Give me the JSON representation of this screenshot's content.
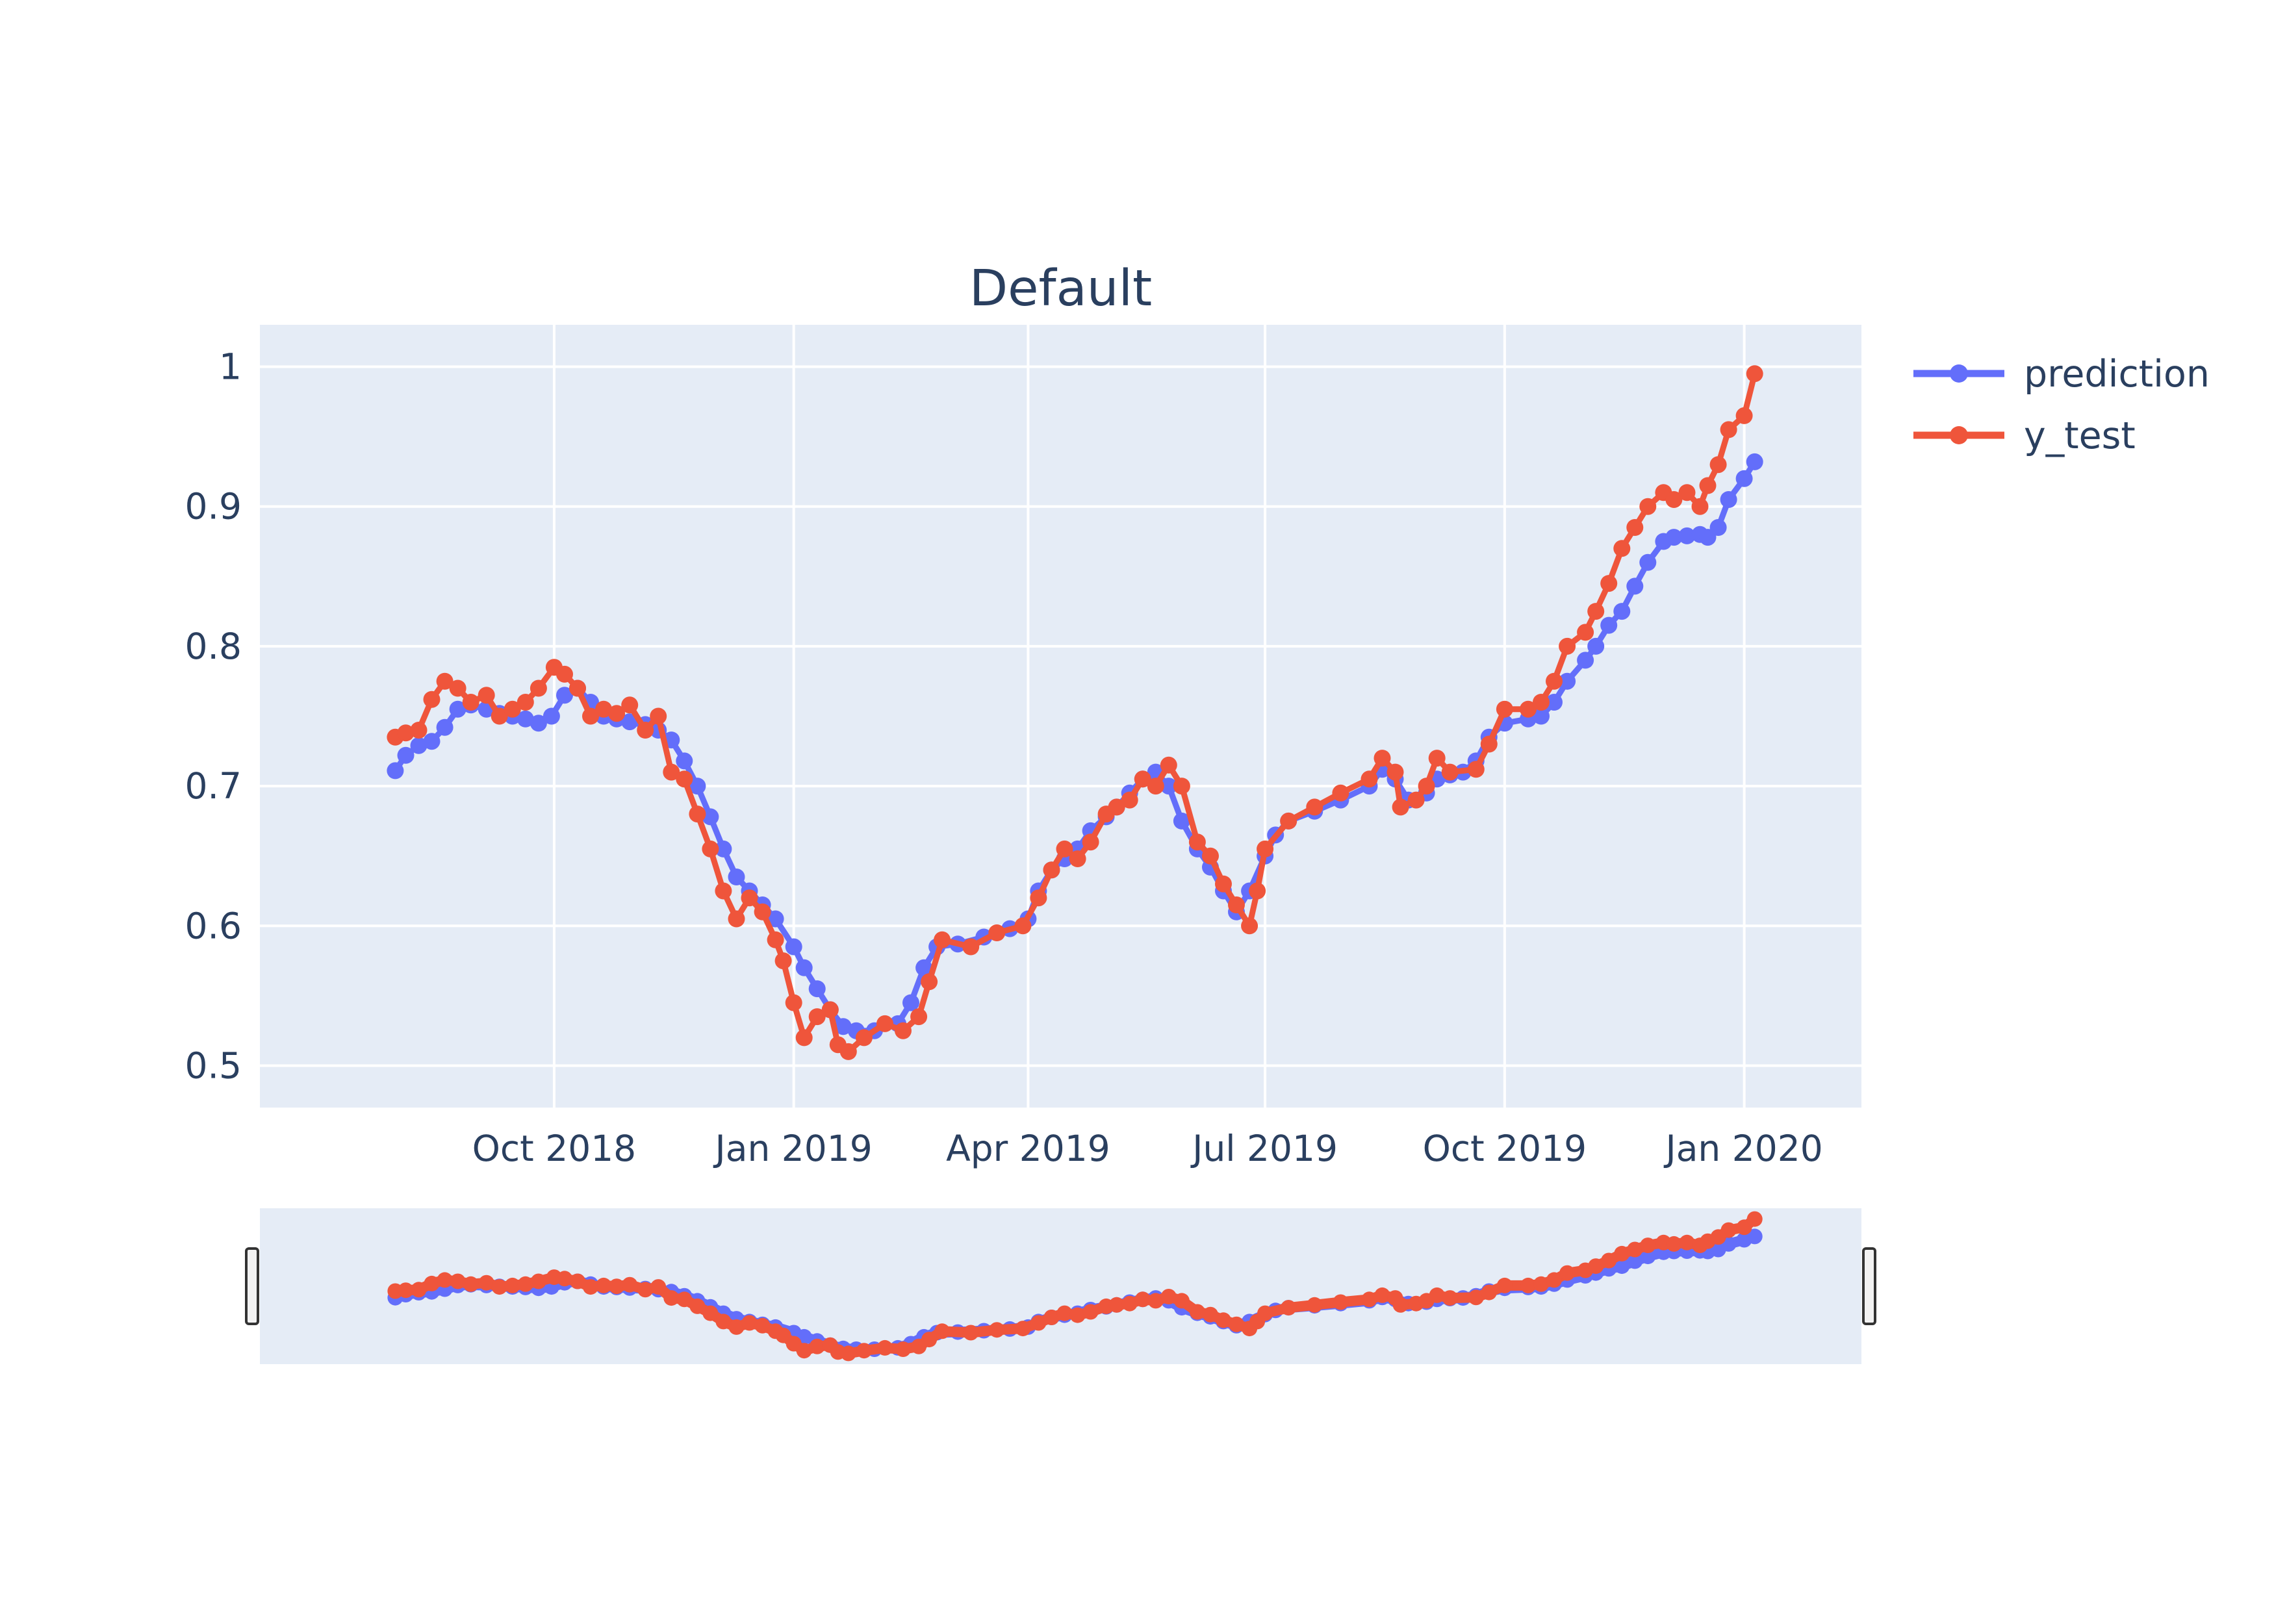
{
  "chart_data": {
    "type": "line",
    "title": "Default",
    "xlabel": "",
    "ylabel": "",
    "x_range": [
      "2018-06-10",
      "2020-02-15"
    ],
    "ylim": [
      0.47,
      1.03
    ],
    "grid": true,
    "legend_placement": "top-right",
    "rangeslider": true,
    "x_ticks": [
      {
        "date": "2018-10-01",
        "label": "Oct 2018"
      },
      {
        "date": "2019-01-01",
        "label": "Jan 2019"
      },
      {
        "date": "2019-04-01",
        "label": "Apr 2019"
      },
      {
        "date": "2019-07-01",
        "label": "Jul 2019"
      },
      {
        "date": "2019-10-01",
        "label": "Oct 2019"
      },
      {
        "date": "2020-01-01",
        "label": "Jan 2020"
      }
    ],
    "y_ticks": [
      {
        "value": 0.5,
        "label": "0.5"
      },
      {
        "value": 0.6,
        "label": "0.6"
      },
      {
        "value": 0.7,
        "label": "0.7"
      },
      {
        "value": 0.8,
        "label": "0.8"
      },
      {
        "value": 0.9,
        "label": "0.9"
      },
      {
        "value": 1.0,
        "label": "1"
      }
    ],
    "series": [
      {
        "name": "prediction",
        "color": "#636efa",
        "points": [
          [
            "2018-08-01",
            0.711
          ],
          [
            "2018-08-05",
            0.722
          ],
          [
            "2018-08-10",
            0.729
          ],
          [
            "2018-08-15",
            0.732
          ],
          [
            "2018-08-20",
            0.742
          ],
          [
            "2018-08-25",
            0.755
          ],
          [
            "2018-08-30",
            0.758
          ],
          [
            "2018-09-05",
            0.755
          ],
          [
            "2018-09-10",
            0.752
          ],
          [
            "2018-09-15",
            0.75
          ],
          [
            "2018-09-20",
            0.748
          ],
          [
            "2018-09-25",
            0.745
          ],
          [
            "2018-09-30",
            0.75
          ],
          [
            "2018-10-05",
            0.765
          ],
          [
            "2018-10-10",
            0.77
          ],
          [
            "2018-10-15",
            0.76
          ],
          [
            "2018-10-20",
            0.75
          ],
          [
            "2018-10-25",
            0.748
          ],
          [
            "2018-10-30",
            0.746
          ],
          [
            "2018-11-05",
            0.744
          ],
          [
            "2018-11-10",
            0.74
          ],
          [
            "2018-11-15",
            0.733
          ],
          [
            "2018-11-20",
            0.718
          ],
          [
            "2018-11-25",
            0.7
          ],
          [
            "2018-11-30",
            0.678
          ],
          [
            "2018-12-05",
            0.655
          ],
          [
            "2018-12-10",
            0.635
          ],
          [
            "2018-12-15",
            0.625
          ],
          [
            "2018-12-20",
            0.615
          ],
          [
            "2018-12-25",
            0.605
          ],
          [
            "2019-01-01",
            0.585
          ],
          [
            "2019-01-05",
            0.57
          ],
          [
            "2019-01-10",
            0.555
          ],
          [
            "2019-01-15",
            0.54
          ],
          [
            "2019-01-20",
            0.528
          ],
          [
            "2019-01-25",
            0.525
          ],
          [
            "2019-02-01",
            0.525
          ],
          [
            "2019-02-10",
            0.53
          ],
          [
            "2019-02-15",
            0.545
          ],
          [
            "2019-02-20",
            0.57
          ],
          [
            "2019-02-25",
            0.585
          ],
          [
            "2019-03-05",
            0.587
          ],
          [
            "2019-03-15",
            0.592
          ],
          [
            "2019-03-25",
            0.598
          ],
          [
            "2019-04-01",
            0.605
          ],
          [
            "2019-04-05",
            0.625
          ],
          [
            "2019-04-10",
            0.64
          ],
          [
            "2019-04-15",
            0.648
          ],
          [
            "2019-04-20",
            0.655
          ],
          [
            "2019-04-25",
            0.668
          ],
          [
            "2019-05-01",
            0.678
          ],
          [
            "2019-05-05",
            0.685
          ],
          [
            "2019-05-10",
            0.695
          ],
          [
            "2019-05-15",
            0.705
          ],
          [
            "2019-05-20",
            0.71
          ],
          [
            "2019-05-25",
            0.7
          ],
          [
            "2019-05-30",
            0.675
          ],
          [
            "2019-06-05",
            0.655
          ],
          [
            "2019-06-10",
            0.642
          ],
          [
            "2019-06-15",
            0.625
          ],
          [
            "2019-06-20",
            0.61
          ],
          [
            "2019-06-25",
            0.625
          ],
          [
            "2019-07-01",
            0.65
          ],
          [
            "2019-07-05",
            0.665
          ],
          [
            "2019-07-10",
            0.675
          ],
          [
            "2019-07-20",
            0.682
          ],
          [
            "2019-07-30",
            0.69
          ],
          [
            "2019-08-10",
            0.7
          ],
          [
            "2019-08-15",
            0.712
          ],
          [
            "2019-08-20",
            0.705
          ],
          [
            "2019-08-25",
            0.69
          ],
          [
            "2019-09-01",
            0.695
          ],
          [
            "2019-09-05",
            0.705
          ],
          [
            "2019-09-10",
            0.708
          ],
          [
            "2019-09-15",
            0.71
          ],
          [
            "2019-09-20",
            0.718
          ],
          [
            "2019-09-25",
            0.735
          ],
          [
            "2019-10-01",
            0.745
          ],
          [
            "2019-10-10",
            0.748
          ],
          [
            "2019-10-15",
            0.75
          ],
          [
            "2019-10-20",
            0.76
          ],
          [
            "2019-10-25",
            0.775
          ],
          [
            "2019-11-01",
            0.79
          ],
          [
            "2019-11-05",
            0.8
          ],
          [
            "2019-11-10",
            0.815
          ],
          [
            "2019-11-15",
            0.825
          ],
          [
            "2019-11-20",
            0.843
          ],
          [
            "2019-11-25",
            0.86
          ],
          [
            "2019-12-01",
            0.875
          ],
          [
            "2019-12-05",
            0.878
          ],
          [
            "2019-12-10",
            0.879
          ],
          [
            "2019-12-15",
            0.88
          ],
          [
            "2019-12-18",
            0.878
          ],
          [
            "2019-12-22",
            0.885
          ],
          [
            "2019-12-26",
            0.905
          ],
          [
            "2020-01-01",
            0.92
          ],
          [
            "2020-01-05",
            0.932
          ]
        ]
      },
      {
        "name": "y_test",
        "color": "#ef553b",
        "points": [
          [
            "2018-08-01",
            0.735
          ],
          [
            "2018-08-05",
            0.738
          ],
          [
            "2018-08-10",
            0.74
          ],
          [
            "2018-08-15",
            0.762
          ],
          [
            "2018-08-20",
            0.775
          ],
          [
            "2018-08-25",
            0.77
          ],
          [
            "2018-08-30",
            0.76
          ],
          [
            "2018-09-05",
            0.765
          ],
          [
            "2018-09-10",
            0.75
          ],
          [
            "2018-09-15",
            0.755
          ],
          [
            "2018-09-20",
            0.76
          ],
          [
            "2018-09-25",
            0.77
          ],
          [
            "2018-10-01",
            0.785
          ],
          [
            "2018-10-05",
            0.78
          ],
          [
            "2018-10-10",
            0.77
          ],
          [
            "2018-10-15",
            0.75
          ],
          [
            "2018-10-20",
            0.755
          ],
          [
            "2018-10-25",
            0.752
          ],
          [
            "2018-10-30",
            0.758
          ],
          [
            "2018-11-05",
            0.74
          ],
          [
            "2018-11-10",
            0.75
          ],
          [
            "2018-11-15",
            0.71
          ],
          [
            "2018-11-20",
            0.705
          ],
          [
            "2018-11-25",
            0.68
          ],
          [
            "2018-11-30",
            0.655
          ],
          [
            "2018-12-05",
            0.625
          ],
          [
            "2018-12-10",
            0.605
          ],
          [
            "2018-12-15",
            0.62
          ],
          [
            "2018-12-20",
            0.61
          ],
          [
            "2018-12-25",
            0.59
          ],
          [
            "2018-12-28",
            0.575
          ],
          [
            "2019-01-01",
            0.545
          ],
          [
            "2019-01-05",
            0.52
          ],
          [
            "2019-01-10",
            0.535
          ],
          [
            "2019-01-15",
            0.54
          ],
          [
            "2019-01-18",
            0.515
          ],
          [
            "2019-01-22",
            0.51
          ],
          [
            "2019-01-28",
            0.52
          ],
          [
            "2019-02-05",
            0.53
          ],
          [
            "2019-02-12",
            0.525
          ],
          [
            "2019-02-18",
            0.535
          ],
          [
            "2019-02-22",
            0.56
          ],
          [
            "2019-02-27",
            0.59
          ],
          [
            "2019-03-10",
            0.585
          ],
          [
            "2019-03-20",
            0.595
          ],
          [
            "2019-03-30",
            0.6
          ],
          [
            "2019-04-05",
            0.62
          ],
          [
            "2019-04-10",
            0.64
          ],
          [
            "2019-04-15",
            0.655
          ],
          [
            "2019-04-20",
            0.648
          ],
          [
            "2019-04-25",
            0.66
          ],
          [
            "2019-05-01",
            0.68
          ],
          [
            "2019-05-05",
            0.685
          ],
          [
            "2019-05-10",
            0.69
          ],
          [
            "2019-05-15",
            0.705
          ],
          [
            "2019-05-20",
            0.7
          ],
          [
            "2019-05-25",
            0.715
          ],
          [
            "2019-05-30",
            0.7
          ],
          [
            "2019-06-05",
            0.66
          ],
          [
            "2019-06-10",
            0.65
          ],
          [
            "2019-06-15",
            0.63
          ],
          [
            "2019-06-20",
            0.615
          ],
          [
            "2019-06-25",
            0.6
          ],
          [
            "2019-06-28",
            0.625
          ],
          [
            "2019-07-01",
            0.655
          ],
          [
            "2019-07-10",
            0.675
          ],
          [
            "2019-07-20",
            0.685
          ],
          [
            "2019-07-30",
            0.695
          ],
          [
            "2019-08-10",
            0.705
          ],
          [
            "2019-08-15",
            0.72
          ],
          [
            "2019-08-20",
            0.71
          ],
          [
            "2019-08-22",
            0.685
          ],
          [
            "2019-08-28",
            0.69
          ],
          [
            "2019-09-01",
            0.7
          ],
          [
            "2019-09-05",
            0.72
          ],
          [
            "2019-09-10",
            0.71
          ],
          [
            "2019-09-20",
            0.712
          ],
          [
            "2019-09-25",
            0.73
          ],
          [
            "2019-10-01",
            0.755
          ],
          [
            "2019-10-10",
            0.755
          ],
          [
            "2019-10-15",
            0.76
          ],
          [
            "2019-10-20",
            0.775
          ],
          [
            "2019-10-25",
            0.8
          ],
          [
            "2019-11-01",
            0.81
          ],
          [
            "2019-11-05",
            0.825
          ],
          [
            "2019-11-10",
            0.845
          ],
          [
            "2019-11-15",
            0.87
          ],
          [
            "2019-11-20",
            0.885
          ],
          [
            "2019-11-25",
            0.9
          ],
          [
            "2019-12-01",
            0.91
          ],
          [
            "2019-12-05",
            0.905
          ],
          [
            "2019-12-10",
            0.91
          ],
          [
            "2019-12-15",
            0.9
          ],
          [
            "2019-12-18",
            0.915
          ],
          [
            "2019-12-22",
            0.93
          ],
          [
            "2019-12-26",
            0.955
          ],
          [
            "2020-01-01",
            0.965
          ],
          [
            "2020-01-05",
            0.995
          ]
        ]
      }
    ]
  }
}
